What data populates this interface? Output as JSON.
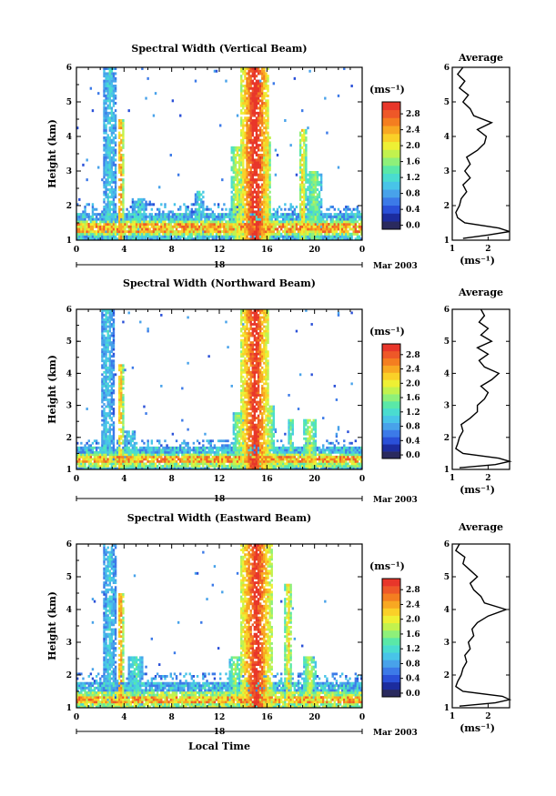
{
  "figure": {
    "xlabel_bottom": "Local Time",
    "date_label": "Mar 2003",
    "day_label": "18"
  },
  "colorbar": {
    "unit_label": "(ms⁻¹)",
    "ticks": [
      "0.0",
      "0.4",
      "0.8",
      "1.2",
      "1.6",
      "2.0",
      "2.4",
      "2.8"
    ],
    "range": [
      -0.1,
      3.1
    ],
    "step": 0.2,
    "colors": [
      "#2a2a5e",
      "#1c2c9e",
      "#2a50d8",
      "#3c7ae8",
      "#48a2ea",
      "#48c4e8",
      "#4adcd0",
      "#5ae8a8",
      "#8ef07a",
      "#c2f24e",
      "#eef034",
      "#fad028",
      "#f8a822",
      "#f47e20",
      "#ee5828",
      "#e8362a"
    ]
  },
  "chart_data": [
    {
      "type": "heatmap",
      "title": "Spectral Width (Vertical Beam)",
      "ylabel": "Height (km)",
      "xlim": [
        0,
        24
      ],
      "ylim": [
        1,
        6
      ],
      "xticks": [
        "0",
        "4",
        "8",
        "12",
        "16",
        "20",
        "0"
      ],
      "yticks": [
        "1",
        "2",
        "3",
        "4",
        "5",
        "6"
      ],
      "features": {
        "floor_km": 1.8,
        "surface_km": 1.35,
        "plumes": [
          {
            "t": 2.8,
            "w": 0.6,
            "top": 6.0,
            "v": 1.0
          },
          {
            "t": 3.7,
            "w": 0.25,
            "top": 4.5,
            "v": 2.6
          },
          {
            "t": 5.3,
            "w": 0.6,
            "top": 2.2,
            "v": 1.1
          },
          {
            "t": 10.3,
            "w": 0.35,
            "top": 2.4,
            "v": 1.2
          },
          {
            "t": 13.5,
            "w": 0.6,
            "top": 3.7,
            "v": 1.8
          },
          {
            "t": 15.0,
            "w": 1.2,
            "top": 6.0,
            "v": 3.1
          },
          {
            "t": 16.0,
            "w": 0.35,
            "top": 4.0,
            "v": 2.2
          },
          {
            "t": 19.0,
            "w": 0.3,
            "top": 4.2,
            "v": 2.2
          },
          {
            "t": 20.0,
            "w": 0.6,
            "top": 3.0,
            "v": 1.6
          }
        ]
      },
      "profile": {
        "title": "Average",
        "xlabel": "(ms⁻¹)",
        "xlim": [
          1,
          2.6
        ],
        "xticks": [
          "1",
          "2"
        ],
        "ylim": [
          1,
          6
        ],
        "heights": [
          1.05,
          1.15,
          1.25,
          1.35,
          1.5,
          1.65,
          1.8,
          2.0,
          2.2,
          2.4,
          2.6,
          2.8,
          3.0,
          3.2,
          3.4,
          3.6,
          3.8,
          4.0,
          4.2,
          4.4,
          4.6,
          4.8,
          5.0,
          5.2,
          5.4,
          5.6,
          5.8,
          6.0
        ],
        "values": [
          1.3,
          2.0,
          2.6,
          2.3,
          1.35,
          1.15,
          1.1,
          1.2,
          1.25,
          1.4,
          1.3,
          1.5,
          1.35,
          1.5,
          1.4,
          1.7,
          1.9,
          1.95,
          1.7,
          2.1,
          1.6,
          1.5,
          1.3,
          1.45,
          1.2,
          1.35,
          1.15,
          1.3
        ]
      }
    },
    {
      "type": "heatmap",
      "title": "Spectral Width (Northward Beam)",
      "ylabel": "Height (km)",
      "xlim": [
        0,
        24
      ],
      "ylim": [
        1,
        6
      ],
      "xticks": [
        "0",
        "4",
        "8",
        "12",
        "16",
        "20",
        "0"
      ],
      "yticks": [
        "1",
        "2",
        "3",
        "4",
        "5",
        "6"
      ],
      "features": {
        "floor_km": 1.7,
        "surface_km": 1.3,
        "plumes": [
          {
            "t": 2.6,
            "w": 0.6,
            "top": 6.0,
            "v": 1.0
          },
          {
            "t": 3.7,
            "w": 0.25,
            "top": 4.3,
            "v": 2.4
          },
          {
            "t": 4.5,
            "w": 0.5,
            "top": 2.2,
            "v": 1.1
          },
          {
            "t": 13.6,
            "w": 0.5,
            "top": 2.8,
            "v": 1.6
          },
          {
            "t": 15.0,
            "w": 1.2,
            "top": 6.0,
            "v": 3.0
          },
          {
            "t": 16.3,
            "w": 0.3,
            "top": 3.0,
            "v": 1.8
          },
          {
            "t": 18.0,
            "w": 0.25,
            "top": 2.6,
            "v": 1.5
          },
          {
            "t": 19.6,
            "w": 0.6,
            "top": 2.6,
            "v": 1.8
          }
        ]
      },
      "profile": {
        "title": "Average",
        "xlabel": "(ms⁻¹)",
        "xlim": [
          1,
          2.6
        ],
        "xticks": [
          "1",
          "2"
        ],
        "ylim": [
          1,
          6
        ],
        "heights": [
          1.05,
          1.15,
          1.25,
          1.35,
          1.5,
          1.65,
          1.8,
          2.0,
          2.2,
          2.4,
          2.6,
          2.8,
          3.0,
          3.2,
          3.4,
          3.6,
          3.8,
          4.0,
          4.2,
          4.4,
          4.6,
          4.8,
          5.0,
          5.2,
          5.4,
          5.6,
          5.8,
          6.0
        ],
        "values": [
          1.2,
          2.2,
          2.8,
          2.3,
          1.3,
          1.1,
          1.15,
          1.2,
          1.3,
          1.25,
          1.5,
          1.7,
          1.7,
          1.9,
          2.0,
          1.8,
          2.1,
          2.3,
          1.9,
          1.75,
          2.0,
          1.7,
          2.1,
          1.8,
          2.0,
          1.75,
          1.9,
          1.8
        ]
      }
    },
    {
      "type": "heatmap",
      "title": "Spectral Width (Eastward Beam)",
      "ylabel": "Height (km)",
      "xlim": [
        0,
        24
      ],
      "ylim": [
        1,
        6
      ],
      "xticks": [
        "0",
        "4",
        "8",
        "12",
        "16",
        "20",
        "0"
      ],
      "yticks": [
        "1",
        "2",
        "3",
        "4",
        "5",
        "6"
      ],
      "features": {
        "floor_km": 1.8,
        "surface_km": 1.25,
        "plumes": [
          {
            "t": 2.8,
            "w": 0.6,
            "top": 6.0,
            "v": 1.0
          },
          {
            "t": 3.7,
            "w": 0.25,
            "top": 4.5,
            "v": 2.6
          },
          {
            "t": 5.0,
            "w": 0.6,
            "top": 2.6,
            "v": 1.3
          },
          {
            "t": 13.3,
            "w": 0.5,
            "top": 2.6,
            "v": 1.6
          },
          {
            "t": 15.1,
            "w": 1.3,
            "top": 6.0,
            "v": 3.0
          },
          {
            "t": 17.8,
            "w": 0.3,
            "top": 4.8,
            "v": 2.2
          },
          {
            "t": 19.6,
            "w": 0.5,
            "top": 2.6,
            "v": 1.8
          }
        ]
      },
      "profile": {
        "title": "Average",
        "xlabel": "(ms⁻¹)",
        "xlim": [
          1,
          2.6
        ],
        "xticks": [
          "1",
          "2"
        ],
        "ylim": [
          1,
          6
        ],
        "heights": [
          1.05,
          1.15,
          1.25,
          1.35,
          1.5,
          1.65,
          1.8,
          2.0,
          2.2,
          2.4,
          2.6,
          2.8,
          3.0,
          3.2,
          3.4,
          3.6,
          3.8,
          4.0,
          4.2,
          4.4,
          4.6,
          4.8,
          5.0,
          5.2,
          5.4,
          5.6,
          5.8,
          6.0
        ],
        "values": [
          1.2,
          2.2,
          2.8,
          2.4,
          1.3,
          1.1,
          1.15,
          1.25,
          1.3,
          1.4,
          1.35,
          1.5,
          1.45,
          1.6,
          1.55,
          1.7,
          2.0,
          2.5,
          1.9,
          1.8,
          1.6,
          1.5,
          1.7,
          1.5,
          1.3,
          1.35,
          1.1,
          1.2
        ]
      }
    }
  ]
}
